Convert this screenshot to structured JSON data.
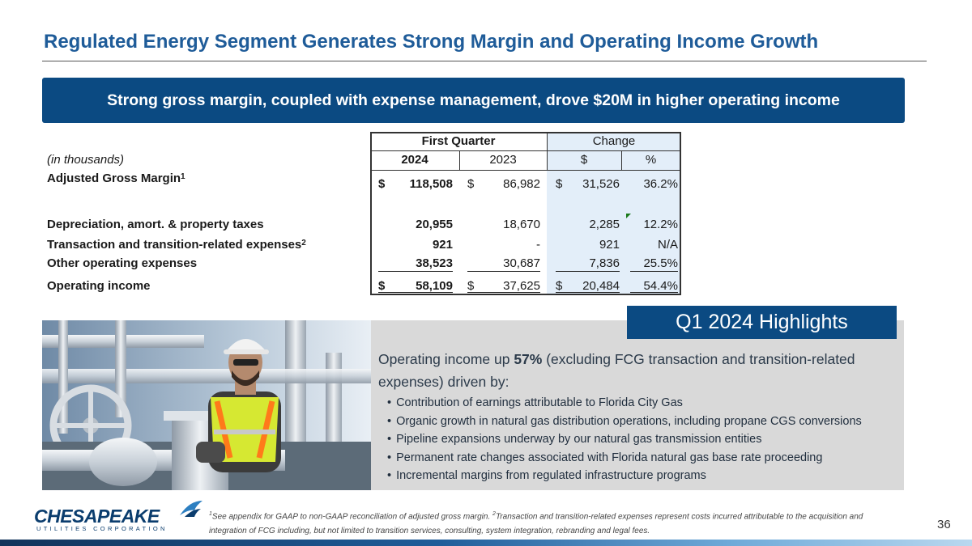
{
  "title": "Regulated Energy Segment Generates Strong Margin and Operating Income Growth",
  "banner": "Strong gross margin, coupled with expense management, drove $20M in higher operating income",
  "table": {
    "group_headers": {
      "first_quarter": "First Quarter",
      "change": "Change"
    },
    "col_headers": {
      "y2024": "2024",
      "y2023": "2023",
      "dollar": "$",
      "pct": "%"
    },
    "units_label": "(in thousands)",
    "currency": "$",
    "rows": [
      {
        "label": "Adjusted Gross Margin",
        "sup": "1",
        "v2024": "118,508",
        "v2023": "86,982",
        "chg": "31,526",
        "pct": "36.2%"
      },
      {
        "label": "Depreciation, amort. & property taxes",
        "sup": "",
        "v2024": "20,955",
        "v2023": "18,670",
        "chg": "2,285",
        "pct": "12.2%"
      },
      {
        "label": "Transaction and transition-related expenses",
        "sup": "2",
        "v2024": "921",
        "v2023": "-",
        "chg": "921",
        "pct": "N/A"
      },
      {
        "label": "Other operating expenses",
        "sup": "",
        "v2024": "38,523",
        "v2023": "30,687",
        "chg": "7,836",
        "pct": "25.5%"
      },
      {
        "label": "Operating income",
        "sup": "",
        "v2024": "58,109",
        "v2023": "37,625",
        "chg": "20,484",
        "pct": "54.4%"
      }
    ]
  },
  "highlights": {
    "heading": "Q1 2024 Highlights",
    "intro_before": "Operating income up ",
    "intro_bold": "57%",
    "intro_after": " (excluding FCG transaction and transition-related expenses) driven by:",
    "bullets": [
      "Contribution of earnings attributable to Florida City Gas",
      "Organic growth in natural gas distribution operations, including propane CGS conversions",
      "Pipeline expansions underway by our natural gas transmission entities",
      "Permanent rate changes associated with Florida natural gas base rate proceeding",
      "Incremental margins from regulated infrastructure programs"
    ]
  },
  "footer": {
    "logo_word": "CHESAPEAKE",
    "logo_sub": "UTILITIES CORPORATION",
    "fn1_mark": "1",
    "fn1_text": "See appendix for GAAP to non-GAAP reconciliation of adjusted gross margin. ",
    "fn2_mark": "2",
    "fn2_text": "Transaction and transition-related expenses represent costs incurred attributable to the acquisition and integration of FCG including, but not limited to transition services, consulting, system integration, rebranding and legal fees.",
    "page_number": "36"
  },
  "colors": {
    "title": "#1f5c99",
    "banner": "#0b4a82",
    "change_shade": "#e3eef9",
    "panel": "#d9d9d9"
  }
}
